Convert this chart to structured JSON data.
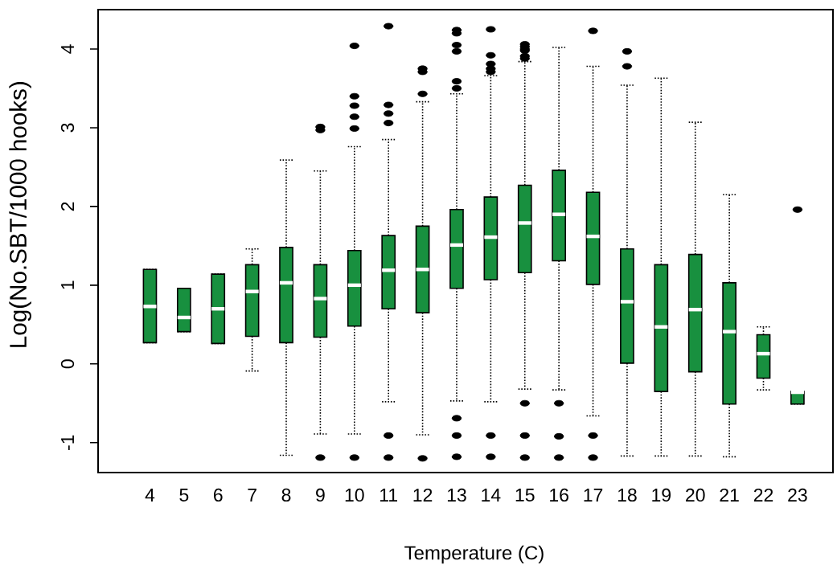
{
  "chart_data": {
    "type": "box",
    "xlabel": "Temperature (C)",
    "ylabel": "Log(No.SBT/1000 hooks)",
    "color": "#18903f",
    "categories": [
      "4",
      "5",
      "6",
      "7",
      "8",
      "9",
      "10",
      "11",
      "12",
      "13",
      "14",
      "15",
      "16",
      "17",
      "18",
      "19",
      "20",
      "21",
      "22",
      "23"
    ],
    "ylim": [
      -1.38,
      4.5
    ],
    "yticks": [
      -1,
      0,
      1,
      2,
      3,
      4
    ],
    "boxes": [
      {
        "low": 0.27,
        "q1": 0.27,
        "median": 0.73,
        "q3": 1.2,
        "high": 1.2
      },
      {
        "low": 0.41,
        "q1": 0.41,
        "median": 0.59,
        "q3": 0.96,
        "high": 0.96
      },
      {
        "low": 0.26,
        "q1": 0.26,
        "median": 0.7,
        "q3": 1.14,
        "high": 1.14
      },
      {
        "low": -0.09,
        "q1": 0.35,
        "median": 0.92,
        "q3": 1.26,
        "high": 1.46
      },
      {
        "low": -1.16,
        "q1": 0.27,
        "median": 1.03,
        "q3": 1.48,
        "high": 2.59
      },
      {
        "low": -0.89,
        "q1": 0.34,
        "median": 0.83,
        "q3": 1.26,
        "high": 2.45,
        "outliers": [
          3.01,
          2.97,
          -1.19
        ]
      },
      {
        "low": -0.89,
        "q1": 0.48,
        "median": 1.0,
        "q3": 1.44,
        "high": 2.76,
        "outliers": [
          4.04,
          3.4,
          3.28,
          3.14,
          2.99,
          -1.19
        ]
      },
      {
        "low": -0.48,
        "q1": 0.7,
        "median": 1.19,
        "q3": 1.63,
        "high": 2.85,
        "outliers": [
          4.29,
          3.29,
          3.18,
          3.06,
          -0.91,
          -1.19
        ]
      },
      {
        "low": -0.9,
        "q1": 0.65,
        "median": 1.2,
        "q3": 1.75,
        "high": 3.33,
        "outliers": [
          3.75,
          3.71,
          3.43,
          -1.2
        ]
      },
      {
        "low": -0.47,
        "q1": 0.96,
        "median": 1.51,
        "q3": 1.96,
        "high": 3.43,
        "outliers": [
          4.24,
          4.2,
          4.05,
          3.97,
          3.59,
          3.5,
          -0.69,
          -0.91,
          -1.18
        ]
      },
      {
        "low": -0.48,
        "q1": 1.07,
        "median": 1.61,
        "q3": 2.12,
        "high": 3.66,
        "outliers": [
          4.25,
          3.92,
          3.81,
          3.75,
          3.71,
          -0.91,
          -1.18
        ]
      },
      {
        "low": -0.32,
        "q1": 1.16,
        "median": 1.79,
        "q3": 2.27,
        "high": 3.84,
        "outliers": [
          4.06,
          4.03,
          4.0,
          3.98,
          3.91,
          3.88,
          -0.5,
          -0.91,
          -1.19
        ]
      },
      {
        "low": -0.33,
        "q1": 1.31,
        "median": 1.9,
        "q3": 2.46,
        "high": 4.02,
        "outliers": [
          -0.5,
          -0.92,
          -1.19
        ]
      },
      {
        "low": -0.66,
        "q1": 1.01,
        "median": 1.62,
        "q3": 2.18,
        "high": 3.78,
        "outliers": [
          4.23,
          -0.91,
          -1.19
        ]
      },
      {
        "low": -1.17,
        "q1": 0.01,
        "median": 0.79,
        "q3": 1.46,
        "high": 3.54,
        "outliers": [
          3.97,
          3.78
        ]
      },
      {
        "low": -1.17,
        "q1": -0.35,
        "median": 0.47,
        "q3": 1.26,
        "high": 3.63
      },
      {
        "low": -1.17,
        "q1": -0.1,
        "median": 0.69,
        "q3": 1.39,
        "high": 3.07
      },
      {
        "low": -1.18,
        "q1": -0.51,
        "median": 0.41,
        "q3": 1.03,
        "high": 2.15
      },
      {
        "low": -0.33,
        "q1": -0.18,
        "median": 0.13,
        "q3": 0.37,
        "high": 0.47
      },
      {
        "low": -0.51,
        "q1": -0.51,
        "median": -0.36,
        "q3": -0.35,
        "high": -0.35,
        "outliers": [
          1.96
        ]
      }
    ]
  }
}
